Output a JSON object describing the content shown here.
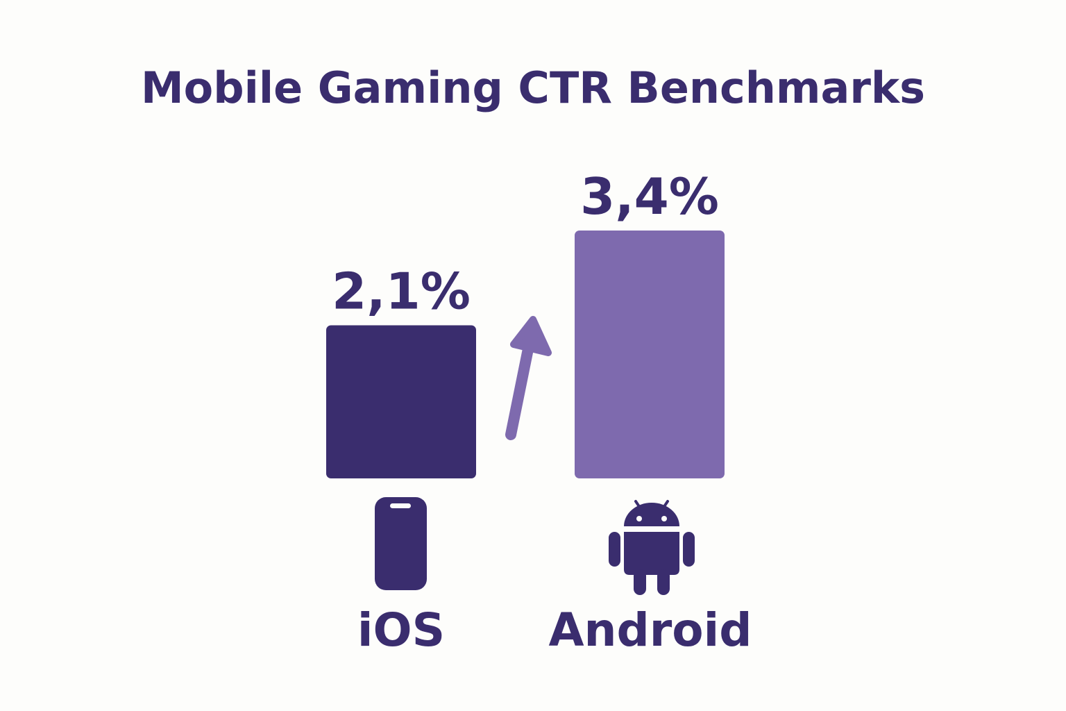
{
  "chart_data": {
    "type": "bar",
    "title": "Mobile Gaming CTR Benchmarks",
    "xlabel": "",
    "ylabel": "",
    "categories": [
      "iOS",
      "Android"
    ],
    "values": [
      2.1,
      3.4
    ],
    "value_labels": [
      "2,1%",
      "3,4%"
    ],
    "unit": "%",
    "bar_colors": [
      "#3a2d6e",
      "#7e6aae"
    ],
    "icons": [
      "phone-icon",
      "android-icon"
    ],
    "grid": false,
    "legend": "none",
    "annotation": "upward arrow from iOS to Android"
  },
  "colors": {
    "text": "#3a2d6e",
    "background": "#fdfdfb",
    "arrow": "#7e6aae"
  }
}
